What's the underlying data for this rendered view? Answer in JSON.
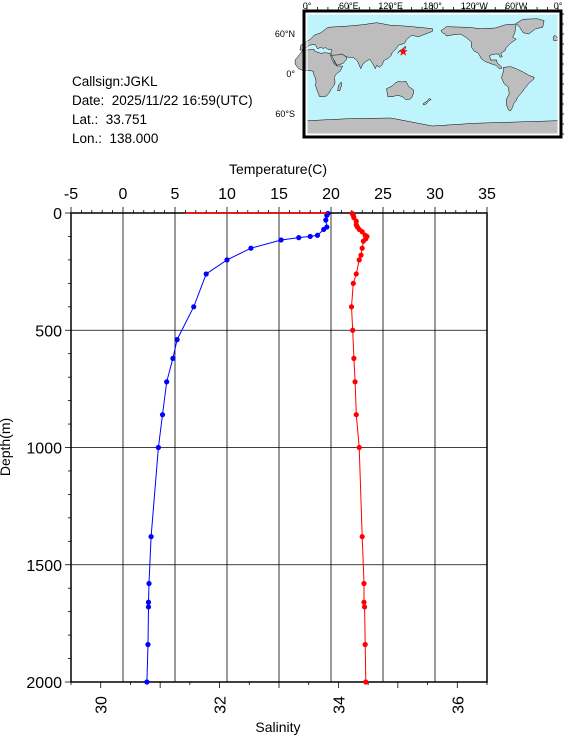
{
  "info": {
    "callsign": "Callsign:JGKL",
    "date": "Date:  2025/11/22 16:59(UTC)",
    "lat": "Lat.:  33.751",
    "lon": "Lon.:  138.000"
  },
  "map": {
    "top_labels": [
      "0°",
      "60°E",
      "120°E",
      "180°",
      "120°W",
      "60°W",
      "0°"
    ],
    "right_labels": [
      "60°N",
      "0°",
      "60°S"
    ],
    "marker": {
      "lon": 138.0,
      "lat": 33.751
    },
    "colors": {
      "ocean": "#bff4fc",
      "land": "#bdbdbd",
      "marker": "#ff0000"
    }
  },
  "chart_data": {
    "type": "line",
    "title": "",
    "top_axis": {
      "label": "Temperature(C)",
      "range": [
        -5,
        35
      ],
      "ticks": [
        -5,
        0,
        5,
        10,
        15,
        20,
        25,
        30,
        35
      ]
    },
    "bottom_axis": {
      "label": "Salinity",
      "range": [
        29.5,
        36.5
      ],
      "ticks": [
        30,
        32,
        34,
        36
      ]
    },
    "y_axis": {
      "label": "Depth(m)",
      "range": [
        0,
        2000
      ],
      "inverted": true,
      "ticks": [
        0,
        500,
        1000,
        1500,
        2000
      ]
    },
    "grid": true,
    "series": [
      {
        "axis": "temperature",
        "color": "#0000ff",
        "points": [
          [
            19.7,
            2
          ],
          [
            19.6,
            10
          ],
          [
            19.5,
            30
          ],
          [
            19.6,
            60
          ],
          [
            19.3,
            70
          ],
          [
            18.7,
            95
          ],
          [
            18.0,
            100
          ],
          [
            16.9,
            105
          ],
          [
            15.2,
            115
          ],
          [
            12.3,
            150
          ],
          [
            10.0,
            200
          ],
          [
            8.0,
            260
          ],
          [
            6.8,
            400
          ],
          [
            5.2,
            540
          ],
          [
            4.8,
            620
          ],
          [
            4.2,
            720
          ],
          [
            3.8,
            860
          ],
          [
            3.4,
            1000
          ],
          [
            2.7,
            1380
          ],
          [
            2.5,
            1580
          ],
          [
            2.45,
            1660
          ],
          [
            2.45,
            1680
          ],
          [
            2.4,
            1840
          ],
          [
            2.3,
            2000
          ]
        ]
      },
      {
        "axis": "salinity",
        "color": "#ff0000",
        "points": [
          [
            34.23,
            2
          ],
          [
            34.25,
            10
          ],
          [
            34.26,
            20
          ],
          [
            34.3,
            35
          ],
          [
            34.3,
            50
          ],
          [
            34.32,
            60
          ],
          [
            34.35,
            70
          ],
          [
            34.4,
            80
          ],
          [
            34.45,
            95
          ],
          [
            34.48,
            100
          ],
          [
            34.46,
            110
          ],
          [
            34.42,
            120
          ],
          [
            34.4,
            150
          ],
          [
            34.38,
            180
          ],
          [
            34.35,
            200
          ],
          [
            34.3,
            260
          ],
          [
            34.25,
            300
          ],
          [
            34.22,
            400
          ],
          [
            34.24,
            500
          ],
          [
            34.26,
            620
          ],
          [
            34.28,
            720
          ],
          [
            34.3,
            860
          ],
          [
            34.35,
            1000
          ],
          [
            34.4,
            1380
          ],
          [
            34.43,
            1580
          ],
          [
            34.43,
            1660
          ],
          [
            34.44,
            1680
          ],
          [
            34.45,
            1840
          ],
          [
            34.46,
            2000
          ]
        ],
        "surface_line": {
          "from_temperature": 6.0,
          "to_temperature": 19.7,
          "depth": 0
        }
      }
    ]
  }
}
